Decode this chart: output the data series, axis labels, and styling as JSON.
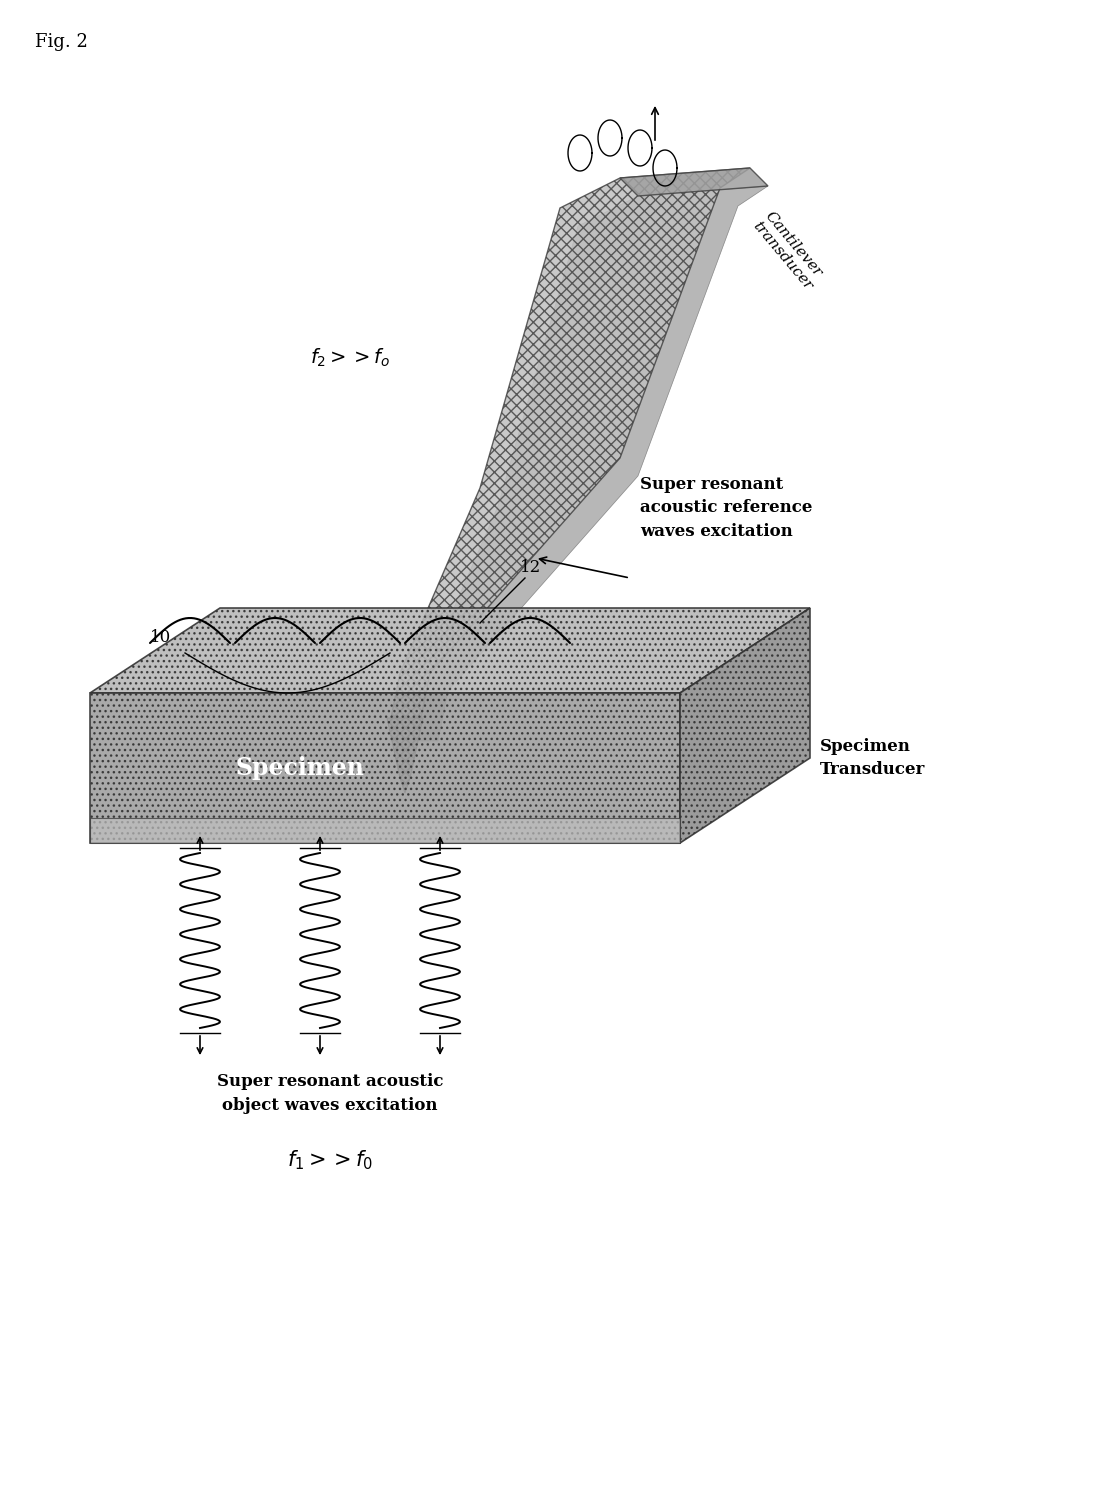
{
  "fig_label": "Fig. 2",
  "background_color": "#ffffff",
  "cantilever_label": "Cantilever\ntransducer",
  "ref_wave_label": "Super resonant\nacoustic reference\nwaves excitation",
  "specimen_label": "Specimen",
  "specimen_transducer_label": "Specimen\nTransducer",
  "object_wave_label": "Super resonant acoustic\nobject waves excitation",
  "freq_label_cantilever": "$f_2>>f_0$",
  "freq_label_object": "$f_1>>f_0$",
  "label_10": "10",
  "label_12": "12"
}
